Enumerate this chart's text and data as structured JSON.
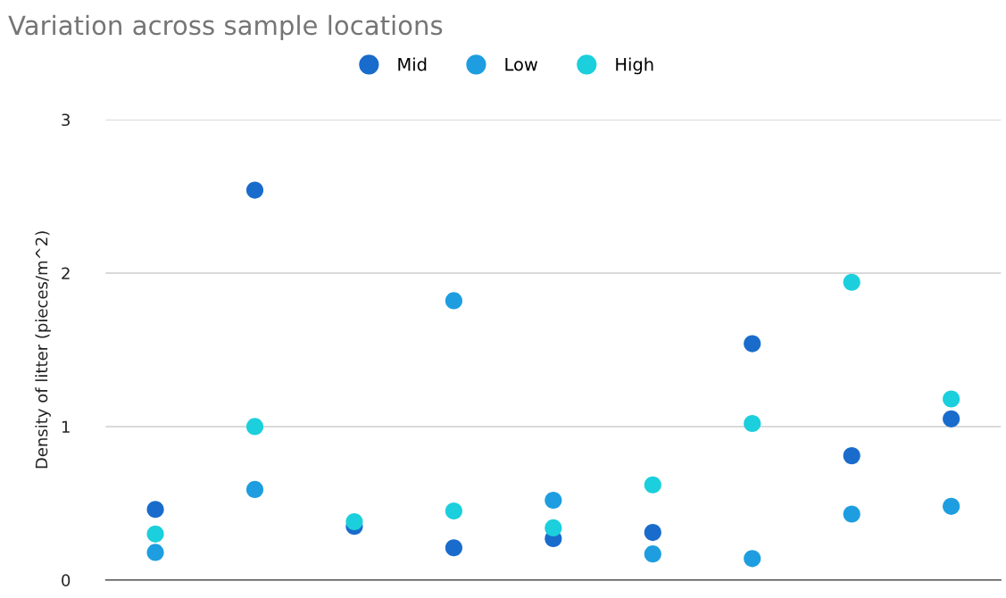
{
  "chart_data": {
    "type": "scatter",
    "title": "Variation across sample locations",
    "ylabel": "Density of litter (pieces/m^2)",
    "categories": [
      null,
      null,
      null,
      null,
      null,
      null,
      null,
      null,
      null
    ],
    "series": [
      {
        "name": "Mid",
        "color": "#1a6ccc",
        "values": [
          0.46,
          2.54,
          0.35,
          0.21,
          0.27,
          0.31,
          1.54,
          0.81,
          1.05
        ]
      },
      {
        "name": "Low",
        "color": "#1e9ee0",
        "values": [
          0.18,
          0.59,
          null,
          1.82,
          0.52,
          0.17,
          0.14,
          0.43,
          0.48
        ]
      },
      {
        "name": "High",
        "color": "#1ccfdc",
        "values": [
          0.3,
          1.0,
          0.38,
          0.45,
          0.34,
          0.62,
          1.02,
          1.94,
          1.18
        ]
      }
    ],
    "ylim": [
      0,
      3
    ],
    "yticks": [
      0,
      1,
      2,
      3
    ],
    "grid": "y",
    "legend": "top",
    "marker": "circle",
    "tick_labels": "y"
  }
}
